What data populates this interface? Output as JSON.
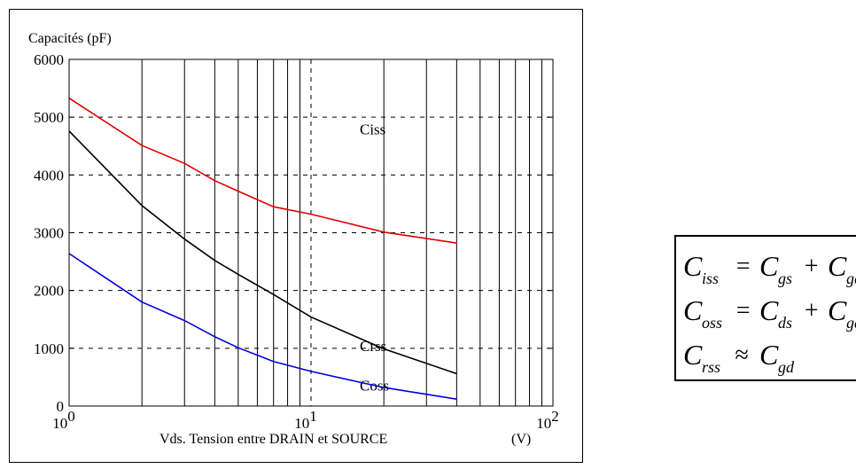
{
  "chart_data": {
    "type": "line",
    "ylabel": "Capacités (pF)",
    "xlabel": "Vds. Tension entre DRAIN et SOURCE",
    "xunit": "(V)",
    "xscale": "log",
    "xlim": [
      1,
      100
    ],
    "ylim": [
      0,
      6000
    ],
    "yticks": [
      "0",
      "1000",
      "2000",
      "3000",
      "4000",
      "5000",
      "6000"
    ],
    "xticks": [
      {
        "base": "10",
        "exp": "0",
        "value": 1
      },
      {
        "base": "10",
        "exp": "1",
        "value": 10
      },
      {
        "base": "10",
        "exp": "2",
        "value": 100
      }
    ],
    "grid": true,
    "series": [
      {
        "name": "Ciss",
        "color": "#e00000",
        "x": [
          1,
          2,
          3,
          4,
          5,
          7,
          10,
          20,
          40
        ],
        "y": [
          5330,
          4510,
          4200,
          3900,
          3720,
          3450,
          3320,
          3010,
          2820
        ]
      },
      {
        "name": "Coss",
        "color": "#000000",
        "x": [
          1,
          2,
          3,
          4,
          5,
          7,
          10,
          20,
          40
        ],
        "y": [
          4760,
          3470,
          2890,
          2520,
          2280,
          1930,
          1540,
          990,
          560
        ]
      },
      {
        "name": "Crss",
        "color": "#0000e0",
        "x": [
          1,
          2,
          3,
          4,
          5,
          7,
          10,
          20,
          40
        ],
        "y": [
          2640,
          1800,
          1480,
          1200,
          1010,
          770,
          600,
          320,
          120
        ]
      }
    ]
  },
  "formulas": [
    {
      "lhs_main": "C",
      "lhs_sub": "iss",
      "op": "=",
      "t1_main": "C",
      "t1_sub": "gs",
      "plus": "+",
      "t2_main": "C",
      "t2_sub": "gd"
    },
    {
      "lhs_main": "C",
      "lhs_sub": "oss",
      "op": "=",
      "t1_main": "C",
      "t1_sub": "ds",
      "plus": "+",
      "t2_main": "C",
      "t2_sub": "gd"
    },
    {
      "lhs_main": "C",
      "lhs_sub": "rss",
      "op": "≈",
      "t1_main": "C",
      "t1_sub": "gd"
    }
  ]
}
